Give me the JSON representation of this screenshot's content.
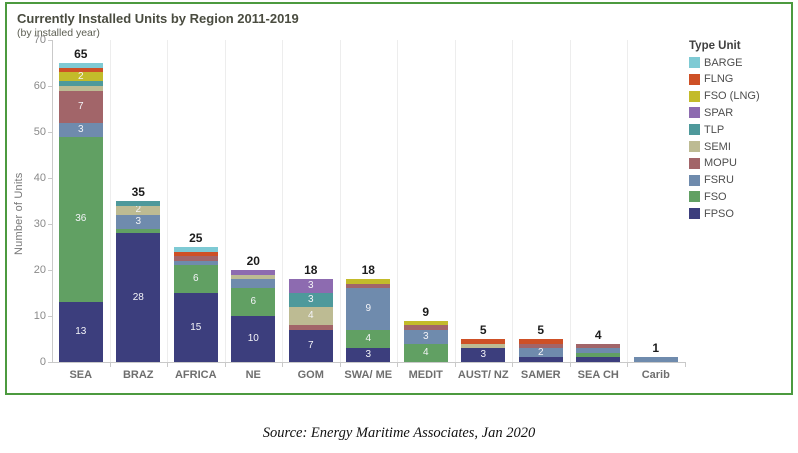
{
  "title": "Currently Installed Units by Region 2011-2019",
  "subtitle": "(by installed year)",
  "source": "Source: Energy Maritime Associates, Jan 2020",
  "panel_border_color": "#4c9a3f",
  "chart_data": {
    "type": "bar",
    "stacked": true,
    "title": "Currently Installed Units by Region 2011-2019",
    "subtitle": "(by installed year)",
    "xlabel": "",
    "ylabel": "Number of Units",
    "ylim": [
      0,
      70
    ],
    "yticks": [
      0,
      10,
      20,
      30,
      40,
      50,
      60,
      70
    ],
    "grid": "none",
    "legend_title": "Type Unit",
    "legend_position": "right",
    "legend_order_top_to_bottom": [
      "BARGE",
      "FLNG",
      "FSO (LNG)",
      "SPAR",
      "TLP",
      "SEMI",
      "MOPU",
      "FSRU",
      "FSO",
      "FPSO"
    ],
    "colors": {
      "FPSO": "#3c3e7d",
      "FSO": "#61a063",
      "FSRU": "#6f8bad",
      "MOPU": "#a26569",
      "SEMI": "#bdbb93",
      "TLP": "#4e999b",
      "SPAR": "#8d6bb0",
      "FSO (LNG)": "#c3bb2a",
      "FLNG": "#ce5026",
      "BARGE": "#7ecad4"
    },
    "categories": [
      "SEA",
      "BRAZ",
      "AFRICA",
      "NE",
      "GOM",
      "SWA/ ME",
      "MEDIT",
      "AUST/ NZ",
      "SAMER",
      "SEA CH",
      "Carib"
    ],
    "totals": [
      65,
      35,
      25,
      20,
      18,
      18,
      9,
      5,
      5,
      4,
      1
    ],
    "bars": [
      {
        "region": "SEA",
        "total": 65,
        "segments": [
          {
            "type": "FPSO",
            "value": 13,
            "label": "13"
          },
          {
            "type": "FSO",
            "value": 36,
            "label": "36"
          },
          {
            "type": "FSRU",
            "value": 3,
            "label": "3"
          },
          {
            "type": "MOPU",
            "value": 7,
            "label": "7"
          },
          {
            "type": "SEMI",
            "value": 1,
            "label": ""
          },
          {
            "type": "TLP",
            "value": 1,
            "label": ""
          },
          {
            "type": "FSO (LNG)",
            "value": 2,
            "label": "2"
          },
          {
            "type": "FLNG",
            "value": 1,
            "label": ""
          },
          {
            "type": "BARGE",
            "value": 1,
            "label": ""
          }
        ]
      },
      {
        "region": "BRAZ",
        "total": 35,
        "segments": [
          {
            "type": "FPSO",
            "value": 28,
            "label": "28"
          },
          {
            "type": "FSO",
            "value": 1,
            "label": ""
          },
          {
            "type": "FSRU",
            "value": 3,
            "label": "3"
          },
          {
            "type": "SEMI",
            "value": 2,
            "label": "2"
          },
          {
            "type": "TLP",
            "value": 1,
            "label": ""
          }
        ]
      },
      {
        "region": "AFRICA",
        "total": 25,
        "segments": [
          {
            "type": "FPSO",
            "value": 15,
            "label": "15"
          },
          {
            "type": "FSO",
            "value": 6,
            "label": "6"
          },
          {
            "type": "FSRU",
            "value": 1,
            "label": ""
          },
          {
            "type": "MOPU",
            "value": 1,
            "label": ""
          },
          {
            "type": "FLNG",
            "value": 1,
            "label": ""
          },
          {
            "type": "BARGE",
            "value": 1,
            "label": ""
          }
        ]
      },
      {
        "region": "NE",
        "total": 20,
        "segments": [
          {
            "type": "FPSO",
            "value": 10,
            "label": "10"
          },
          {
            "type": "FSO",
            "value": 6,
            "label": "6"
          },
          {
            "type": "FSRU",
            "value": 2,
            "label": ""
          },
          {
            "type": "SEMI",
            "value": 1,
            "label": ""
          },
          {
            "type": "SPAR",
            "value": 1,
            "label": ""
          }
        ]
      },
      {
        "region": "GOM",
        "total": 18,
        "segments": [
          {
            "type": "FPSO",
            "value": 7,
            "label": "7"
          },
          {
            "type": "MOPU",
            "value": 1,
            "label": ""
          },
          {
            "type": "SEMI",
            "value": 4,
            "label": "4"
          },
          {
            "type": "TLP",
            "value": 3,
            "label": "3"
          },
          {
            "type": "SPAR",
            "value": 3,
            "label": "3"
          }
        ]
      },
      {
        "region": "SWA/ ME",
        "total": 18,
        "segments": [
          {
            "type": "FPSO",
            "value": 3,
            "label": "3"
          },
          {
            "type": "FSO",
            "value": 4,
            "label": "4"
          },
          {
            "type": "FSRU",
            "value": 9,
            "label": "9"
          },
          {
            "type": "MOPU",
            "value": 1,
            "label": ""
          },
          {
            "type": "FSO (LNG)",
            "value": 1,
            "label": ""
          }
        ]
      },
      {
        "region": "MEDIT",
        "total": 9,
        "segments": [
          {
            "type": "FSO",
            "value": 4,
            "label": "4"
          },
          {
            "type": "FSRU",
            "value": 3,
            "label": "3"
          },
          {
            "type": "MOPU",
            "value": 1,
            "label": ""
          },
          {
            "type": "FSO (LNG)",
            "value": 1,
            "label": ""
          }
        ]
      },
      {
        "region": "AUST/ NZ",
        "total": 5,
        "segments": [
          {
            "type": "FPSO",
            "value": 3,
            "label": "3"
          },
          {
            "type": "SEMI",
            "value": 1,
            "label": ""
          },
          {
            "type": "FLNG",
            "value": 1,
            "label": ""
          }
        ]
      },
      {
        "region": "SAMER",
        "total": 5,
        "segments": [
          {
            "type": "FPSO",
            "value": 1,
            "label": ""
          },
          {
            "type": "FSRU",
            "value": 2,
            "label": "2"
          },
          {
            "type": "MOPU",
            "value": 1,
            "label": ""
          },
          {
            "type": "FLNG",
            "value": 1,
            "label": ""
          }
        ]
      },
      {
        "region": "SEA CH",
        "total": 4,
        "segments": [
          {
            "type": "FPSO",
            "value": 1,
            "label": ""
          },
          {
            "type": "FSO",
            "value": 1,
            "label": ""
          },
          {
            "type": "FSRU",
            "value": 1,
            "label": ""
          },
          {
            "type": "MOPU",
            "value": 1,
            "label": ""
          }
        ]
      },
      {
        "region": "Carib",
        "total": 1,
        "segments": [
          {
            "type": "FSRU",
            "value": 1,
            "label": ""
          }
        ]
      }
    ]
  }
}
